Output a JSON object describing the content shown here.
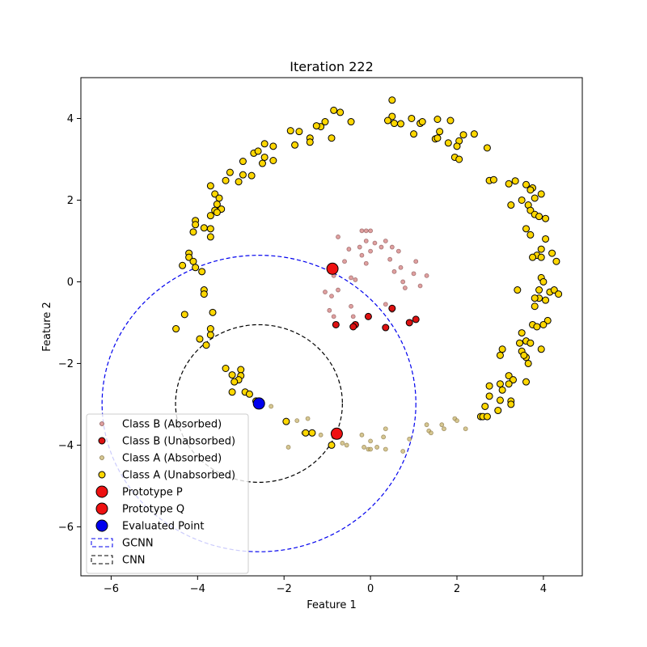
{
  "chart_data": {
    "type": "scatter",
    "title": "Iteration 222",
    "xlabel": "Feature 1",
    "ylabel": "Feature 2",
    "xlim": [
      -6.7,
      4.9
    ],
    "ylim": [
      -7.2,
      5.0
    ],
    "xticks": [
      -6,
      -4,
      -2,
      0,
      2,
      4
    ],
    "yticks": [
      -6,
      -4,
      -2,
      0,
      2,
      4
    ],
    "xtick_labels": [
      "−6",
      "−4",
      "−2",
      "0",
      "2",
      "4"
    ],
    "ytick_labels": [
      "−6",
      "−4",
      "−2",
      "0",
      "2",
      "4"
    ],
    "grid": false,
    "legend_position": "lower-left",
    "series": [
      {
        "name": "Class B (Absorbed)",
        "marker": "small-circle",
        "color": "#d47f7f",
        "points": [
          [
            -0.2,
            1.25
          ],
          [
            -0.1,
            1.25
          ],
          [
            0.0,
            1.25
          ],
          [
            -0.75,
            1.1
          ],
          [
            -0.1,
            1.0
          ],
          [
            0.1,
            0.95
          ],
          [
            0.35,
            1.0
          ],
          [
            -0.25,
            0.85
          ],
          [
            -0.5,
            0.8
          ],
          [
            0.0,
            0.75
          ],
          [
            0.25,
            0.85
          ],
          [
            0.5,
            0.85
          ],
          [
            0.65,
            0.75
          ],
          [
            0.45,
            0.55
          ],
          [
            1.05,
            0.5
          ],
          [
            -0.2,
            0.65
          ],
          [
            -0.6,
            0.5
          ],
          [
            0.7,
            0.35
          ],
          [
            -0.1,
            0.45
          ],
          [
            -0.85,
            0.15
          ],
          [
            0.55,
            0.25
          ],
          [
            1.0,
            0.2
          ],
          [
            1.3,
            0.15
          ],
          [
            -0.45,
            0.1
          ],
          [
            0.75,
            0.0
          ],
          [
            1.15,
            -0.1
          ],
          [
            -0.35,
            0.05
          ],
          [
            0.8,
            -0.15
          ],
          [
            -0.75,
            -0.2
          ],
          [
            -1.05,
            -0.25
          ],
          [
            -0.9,
            -0.35
          ],
          [
            0.35,
            -0.55
          ],
          [
            -0.45,
            -0.6
          ],
          [
            0.5,
            -0.7
          ],
          [
            -0.95,
            -0.7
          ],
          [
            -0.85,
            -0.85
          ],
          [
            -0.4,
            -0.85
          ]
        ]
      },
      {
        "name": "Class B (Unabsorbed)",
        "marker": "circle",
        "color": "#dd1111",
        "points": [
          [
            -0.8,
            -1.05
          ],
          [
            -0.35,
            -1.05
          ],
          [
            -0.4,
            -1.1
          ],
          [
            -0.05,
            -0.85
          ],
          [
            0.5,
            -0.65
          ],
          [
            0.35,
            -1.12
          ],
          [
            0.9,
            -1.0
          ],
          [
            1.05,
            -0.92
          ]
        ]
      },
      {
        "name": "Class A (Absorbed)",
        "marker": "small-circle",
        "color": "#c8b46e",
        "points": [
          [
            -2.3,
            -3.05
          ],
          [
            -2.65,
            -3.0
          ],
          [
            -1.7,
            -3.4
          ],
          [
            -1.45,
            -3.35
          ],
          [
            -1.55,
            -3.7
          ],
          [
            -1.15,
            -3.75
          ],
          [
            -0.85,
            -3.8
          ],
          [
            -0.55,
            -4.0
          ],
          [
            -0.65,
            -3.95
          ],
          [
            -1.9,
            -4.05
          ],
          [
            -0.2,
            -3.75
          ],
          [
            0.35,
            -3.6
          ],
          [
            0.3,
            -3.8
          ],
          [
            0.0,
            -3.9
          ],
          [
            -0.15,
            -4.05
          ],
          [
            -0.05,
            -4.1
          ],
          [
            0.0,
            -4.1
          ],
          [
            0.15,
            -4.05
          ],
          [
            0.35,
            -4.1
          ],
          [
            0.75,
            -4.15
          ],
          [
            0.9,
            -3.85
          ],
          [
            1.3,
            -3.5
          ],
          [
            1.35,
            -3.65
          ],
          [
            1.4,
            -3.7
          ],
          [
            1.65,
            -3.5
          ],
          [
            1.7,
            -3.6
          ],
          [
            1.95,
            -3.35
          ],
          [
            2.0,
            -3.4
          ],
          [
            2.2,
            -3.6
          ]
        ]
      },
      {
        "name": "Class A (Unabsorbed)",
        "marker": "circle",
        "color": "#ffd700",
        "points": [
          [
            0.5,
            4.45
          ],
          [
            -0.85,
            4.2
          ],
          [
            -0.7,
            4.15
          ],
          [
            0.5,
            4.05
          ],
          [
            0.4,
            3.95
          ],
          [
            0.95,
            4.0
          ],
          [
            1.55,
            3.98
          ],
          [
            1.85,
            3.95
          ],
          [
            -0.45,
            3.92
          ],
          [
            -1.05,
            3.92
          ],
          [
            0.55,
            3.88
          ],
          [
            0.7,
            3.87
          ],
          [
            1.15,
            3.88
          ],
          [
            1.2,
            3.92
          ],
          [
            -1.15,
            3.8
          ],
          [
            -1.25,
            3.82
          ],
          [
            -1.85,
            3.7
          ],
          [
            -1.65,
            3.68
          ],
          [
            1.0,
            3.62
          ],
          [
            1.6,
            3.68
          ],
          [
            1.5,
            3.5
          ],
          [
            1.55,
            3.52
          ],
          [
            2.05,
            3.45
          ],
          [
            2.15,
            3.6
          ],
          [
            2.4,
            3.62
          ],
          [
            -0.9,
            3.52
          ],
          [
            -1.4,
            3.52
          ],
          [
            -1.4,
            3.42
          ],
          [
            -1.75,
            3.35
          ],
          [
            -2.45,
            3.38
          ],
          [
            1.8,
            3.4
          ],
          [
            2.0,
            3.32
          ],
          [
            2.7,
            3.28
          ],
          [
            -2.25,
            3.32
          ],
          [
            -2.7,
            3.15
          ],
          [
            -2.6,
            3.2
          ],
          [
            -2.45,
            3.05
          ],
          [
            -2.25,
            2.97
          ],
          [
            1.95,
            3.05
          ],
          [
            2.05,
            3.0
          ],
          [
            -2.95,
            2.95
          ],
          [
            -2.5,
            2.9
          ],
          [
            -2.75,
            2.6
          ],
          [
            -2.95,
            2.62
          ],
          [
            -3.25,
            2.68
          ],
          [
            -3.05,
            2.45
          ],
          [
            -3.35,
            2.48
          ],
          [
            2.75,
            2.48
          ],
          [
            2.85,
            2.5
          ],
          [
            3.35,
            2.47
          ],
          [
            3.6,
            2.38
          ],
          [
            -3.7,
            2.35
          ],
          [
            3.2,
            2.4
          ],
          [
            3.75,
            2.3
          ],
          [
            3.7,
            2.25
          ],
          [
            3.95,
            2.15
          ],
          [
            -3.6,
            2.15
          ],
          [
            3.5,
            2.0
          ],
          [
            3.8,
            2.05
          ],
          [
            -3.5,
            2.05
          ],
          [
            -3.55,
            1.9
          ],
          [
            -3.6,
            1.75
          ],
          [
            -3.45,
            1.78
          ],
          [
            -3.55,
            1.7
          ],
          [
            -3.7,
            1.62
          ],
          [
            3.25,
            1.88
          ],
          [
            3.65,
            1.88
          ],
          [
            3.7,
            1.75
          ],
          [
            3.8,
            1.65
          ],
          [
            3.9,
            1.6
          ],
          [
            4.05,
            1.55
          ],
          [
            -4.05,
            1.5
          ],
          [
            -4.05,
            1.4
          ],
          [
            -3.85,
            1.32
          ],
          [
            -3.7,
            1.3
          ],
          [
            -4.1,
            1.22
          ],
          [
            -3.7,
            1.1
          ],
          [
            3.6,
            1.3
          ],
          [
            3.7,
            1.15
          ],
          [
            4.05,
            1.05
          ],
          [
            -4.2,
            0.7
          ],
          [
            -4.2,
            0.6
          ],
          [
            -4.1,
            0.5
          ],
          [
            -4.35,
            0.4
          ],
          [
            3.95,
            0.8
          ],
          [
            3.85,
            0.65
          ],
          [
            3.95,
            0.6
          ],
          [
            4.2,
            0.7
          ],
          [
            4.3,
            0.5
          ],
          [
            3.75,
            0.6
          ],
          [
            -4.05,
            0.35
          ],
          [
            -3.9,
            0.25
          ],
          [
            3.95,
            0.1
          ],
          [
            4.0,
            0.0
          ],
          [
            -3.85,
            -0.2
          ],
          [
            -3.85,
            -0.3
          ],
          [
            3.4,
            -0.2
          ],
          [
            3.9,
            -0.2
          ],
          [
            4.15,
            -0.25
          ],
          [
            4.25,
            -0.2
          ],
          [
            4.35,
            -0.3
          ],
          [
            3.9,
            -0.4
          ],
          [
            3.8,
            -0.4
          ],
          [
            4.05,
            -0.45
          ],
          [
            -3.65,
            -0.75
          ],
          [
            -4.3,
            -0.8
          ],
          [
            3.8,
            -0.6
          ],
          [
            4.1,
            -0.95
          ],
          [
            4.0,
            -1.05
          ],
          [
            3.75,
            -1.05
          ],
          [
            3.85,
            -1.1
          ],
          [
            3.5,
            -1.25
          ],
          [
            -4.5,
            -1.15
          ],
          [
            -3.7,
            -1.15
          ],
          [
            -3.7,
            -1.3
          ],
          [
            -3.95,
            -1.4
          ],
          [
            -3.8,
            -1.55
          ],
          [
            3.6,
            -1.45
          ],
          [
            3.7,
            -1.5
          ],
          [
            3.45,
            -1.5
          ],
          [
            3.05,
            -1.65
          ],
          [
            3.0,
            -1.8
          ],
          [
            3.5,
            -1.7
          ],
          [
            3.6,
            -1.85
          ],
          [
            3.95,
            -1.65
          ],
          [
            3.55,
            -1.8
          ],
          [
            3.65,
            -2.0
          ],
          [
            -3.35,
            -2.12
          ],
          [
            -3.0,
            -2.15
          ],
          [
            -3.2,
            -2.28
          ],
          [
            -3.0,
            -2.3
          ],
          [
            -3.05,
            -2.4
          ],
          [
            -3.15,
            -2.45
          ],
          [
            3.2,
            -2.3
          ],
          [
            3.3,
            -2.4
          ],
          [
            3.2,
            -2.5
          ],
          [
            3.6,
            -2.45
          ],
          [
            2.75,
            -2.55
          ],
          [
            3.0,
            -2.5
          ],
          [
            3.05,
            -2.65
          ],
          [
            2.75,
            -2.8
          ],
          [
            -3.2,
            -2.7
          ],
          [
            -2.9,
            -2.7
          ],
          [
            -2.8,
            -2.75
          ],
          [
            -2.65,
            -2.92
          ],
          [
            3.25,
            -2.92
          ],
          [
            3.25,
            -3.0
          ],
          [
            3.0,
            -2.9
          ],
          [
            2.65,
            -3.05
          ],
          [
            2.95,
            -3.15
          ],
          [
            2.55,
            -3.3
          ],
          [
            2.6,
            -3.3
          ],
          [
            2.7,
            -3.3
          ],
          [
            -1.95,
            -3.42
          ],
          [
            -1.5,
            -3.7
          ],
          [
            -1.35,
            -3.7
          ],
          [
            -0.9,
            -4.0
          ]
        ]
      },
      {
        "name": "Prototype P",
        "marker": "large-circle",
        "color": "#ee1111",
        "points": [
          [
            -0.88,
            0.32
          ]
        ]
      },
      {
        "name": "Prototype Q",
        "marker": "large-circle",
        "color": "#ee1111",
        "points": [
          [
            -0.78,
            -3.72
          ]
        ]
      },
      {
        "name": "Evaluated Point",
        "marker": "large-circle",
        "color": "#0000ee",
        "points": [
          [
            -2.58,
            -2.98
          ]
        ]
      }
    ],
    "circles": [
      {
        "name": "GCNN",
        "center": [
          -2.58,
          -2.98
        ],
        "radius": 3.63,
        "color": "#0000ee",
        "style": "dashed"
      },
      {
        "name": "CNN",
        "center": [
          -2.58,
          -2.98
        ],
        "radius": 1.93,
        "color": "#000000",
        "style": "dashed"
      }
    ]
  }
}
